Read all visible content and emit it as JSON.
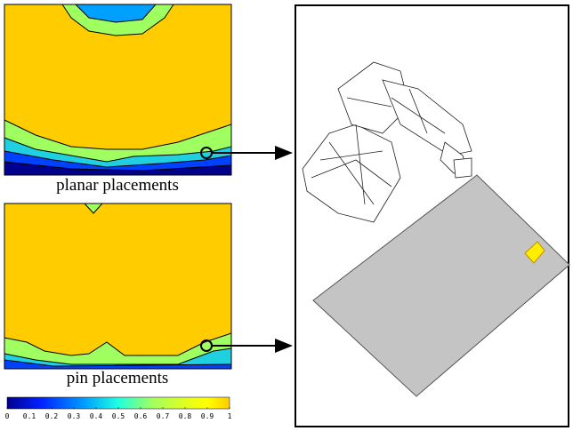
{
  "panels": [
    {
      "label": "planar placements"
    },
    {
      "label": "pin placements"
    }
  ],
  "colorbar": {
    "ticks": [
      0,
      0.1,
      0.2,
      0.3,
      0.4,
      0.5,
      0.6,
      0.7,
      0.8,
      0.9,
      1
    ],
    "lim": [
      0,
      1
    ]
  }
}
